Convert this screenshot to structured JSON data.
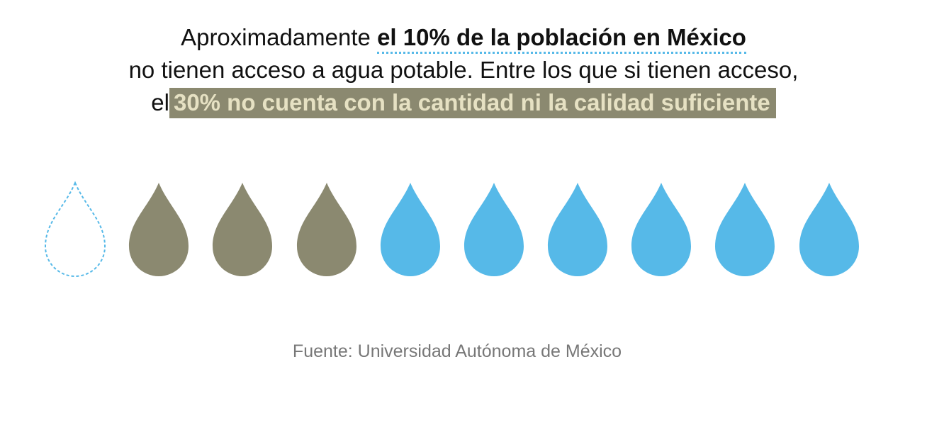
{
  "headline": {
    "line1": {
      "text": "Aproximadamente",
      "emphasis": "el 10% de la población en México"
    },
    "line2": "no tienen acceso a agua potable. Entre los que si tienen acceso,",
    "line3": {
      "text": "el",
      "highlight": "30% no cuenta con la cantidad ni la calidad suficiente"
    }
  },
  "source": "Fuente: Universidad Autónoma de México"
}
